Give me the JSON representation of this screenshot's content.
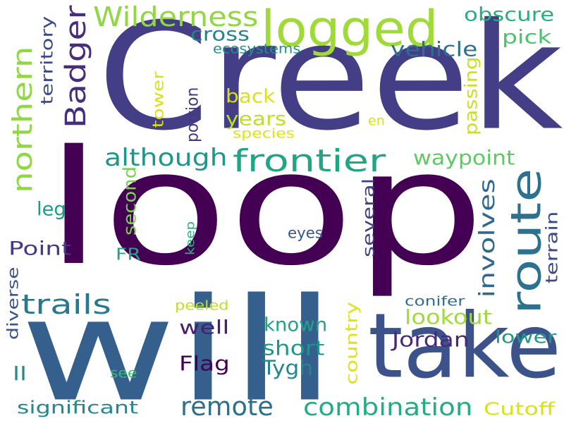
{
  "words": [
    {
      "text": "Creek",
      "color": "#433e85",
      "rotate": 0
    },
    {
      "text": "loop",
      "color": "#440154",
      "rotate": 0
    },
    {
      "text": "will",
      "color": "#355f8d",
      "rotate": 0
    },
    {
      "text": "take",
      "color": "#3b528b",
      "rotate": 0
    },
    {
      "text": "logged",
      "color": "#a0da39",
      "rotate": 0
    },
    {
      "text": "route",
      "color": "#2c728e",
      "rotate": -90
    },
    {
      "text": "northern",
      "color": "#90d743",
      "rotate": -90
    },
    {
      "text": "Badger",
      "color": "#472d7b",
      "rotate": -90
    },
    {
      "text": "Wilderness",
      "color": "#90d743",
      "rotate": 0
    },
    {
      "text": "frontier",
      "color": "#21a685",
      "rotate": 0
    },
    {
      "text": "although",
      "color": "#1f968b",
      "rotate": 0
    },
    {
      "text": "combination",
      "color": "#25ac82",
      "rotate": 0
    },
    {
      "text": "involves",
      "color": "#31688e",
      "rotate": -90
    },
    {
      "text": "trails",
      "color": "#2a788e",
      "rotate": 0
    },
    {
      "text": "remote",
      "color": "#2d708e",
      "rotate": 0
    },
    {
      "text": "territory",
      "color": "#3e4989",
      "rotate": -90
    },
    {
      "text": "obscure",
      "color": "#29af7f",
      "rotate": 0
    },
    {
      "text": "cross",
      "color": "#27808e",
      "rotate": 0
    },
    {
      "text": "pick",
      "color": "#4ac16d",
      "rotate": 0
    },
    {
      "text": "vehicle",
      "color": "#2d708e",
      "rotate": 0
    },
    {
      "text": "ecosystems",
      "color": "#21918c",
      "rotate": 0
    },
    {
      "text": "back",
      "color": "#d8e219",
      "rotate": 0
    },
    {
      "text": "years",
      "color": "#bddf26",
      "rotate": 0
    },
    {
      "text": "species",
      "color": "#dde318",
      "rotate": 0
    },
    {
      "text": "tower",
      "color": "#d8e219",
      "rotate": -90
    },
    {
      "text": "portion",
      "color": "#453781",
      "rotate": -90
    },
    {
      "text": "passing",
      "color": "#cae11f",
      "rotate": -90
    },
    {
      "text": "en",
      "color": "#d8e219",
      "rotate": 0
    },
    {
      "text": "waypoint",
      "color": "#5ec962",
      "rotate": 0
    },
    {
      "text": "second",
      "color": "#7ad151",
      "rotate": -90
    },
    {
      "text": "leg",
      "color": "#1e9c89",
      "rotate": 0
    },
    {
      "text": "several",
      "color": "#424086",
      "rotate": -90
    },
    {
      "text": "terrain",
      "color": "#3e4989",
      "rotate": -90
    },
    {
      "text": "Point",
      "color": "#443a83",
      "rotate": 0
    },
    {
      "text": "FR",
      "color": "#20a386",
      "rotate": 0
    },
    {
      "text": "keep",
      "color": "#2db27d",
      "rotate": -90
    },
    {
      "text": "eyes",
      "color": "#39568c",
      "rotate": 0
    },
    {
      "text": "diverse",
      "color": "#3b528b",
      "rotate": -90
    },
    {
      "text": "lookout",
      "color": "#a0da39",
      "rotate": 0
    },
    {
      "text": "peeled",
      "color": "#bddf26",
      "rotate": 0
    },
    {
      "text": "conifer",
      "color": "#2e6e8e",
      "rotate": 0
    },
    {
      "text": "well",
      "color": "#481f70",
      "rotate": 0
    },
    {
      "text": "known",
      "color": "#20a386",
      "rotate": 0
    },
    {
      "text": "country",
      "color": "#dde318",
      "rotate": -90
    },
    {
      "text": "Jordan",
      "color": "#482878",
      "rotate": 0
    },
    {
      "text": "lower",
      "color": "#1f998a",
      "rotate": 0
    },
    {
      "text": "short",
      "color": "#1f968b",
      "rotate": 0
    },
    {
      "text": "Flag",
      "color": "#440154",
      "rotate": 0
    },
    {
      "text": "ll",
      "color": "#23898e",
      "rotate": 0
    },
    {
      "text": "see",
      "color": "#3bbb75",
      "rotate": 0
    },
    {
      "text": "Tygh",
      "color": "#25848e",
      "rotate": 0
    },
    {
      "text": "significant",
      "color": "#23898e",
      "rotate": 0
    },
    {
      "text": "Cutoff",
      "color": "#d8e219",
      "rotate": 0
    }
  ]
}
